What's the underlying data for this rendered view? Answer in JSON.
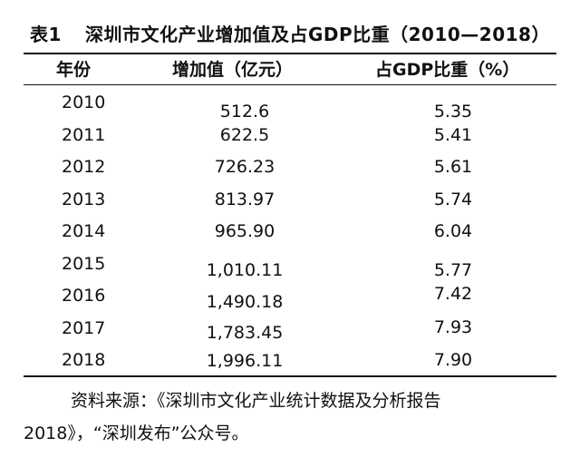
{
  "table": {
    "number": "表1",
    "title": "深圳市文化产业增加值及占GDP比重（2010—2018）",
    "headers": {
      "year": "年份",
      "value": "增加值（亿元）",
      "share": "占GDP比重（%）"
    },
    "rows": [
      {
        "year": "2010",
        "value": "512.6",
        "share": "5.35"
      },
      {
        "year": "2011",
        "value": "622.5",
        "share": "5.41"
      },
      {
        "year": "2012",
        "value": "726.23",
        "share": "5.61"
      },
      {
        "year": "2013",
        "value": "813.97",
        "share": "5.74"
      },
      {
        "year": "2014",
        "value": "965.90",
        "share": "6.04"
      },
      {
        "year": "2015",
        "value": "1,010.11",
        "share": "5.77"
      },
      {
        "year": "2016",
        "value": "1,490.18",
        "share": "7.42"
      },
      {
        "year": "2017",
        "value": "1,783.45",
        "share": "7.93"
      },
      {
        "year": "2018",
        "value": "1,996.11",
        "share": "7.90"
      }
    ]
  },
  "source_note": {
    "line1": "资料来源：《深圳市文化产业统计数据及分析报告",
    "line2": "2018》，“深圳发布”公众号。"
  }
}
